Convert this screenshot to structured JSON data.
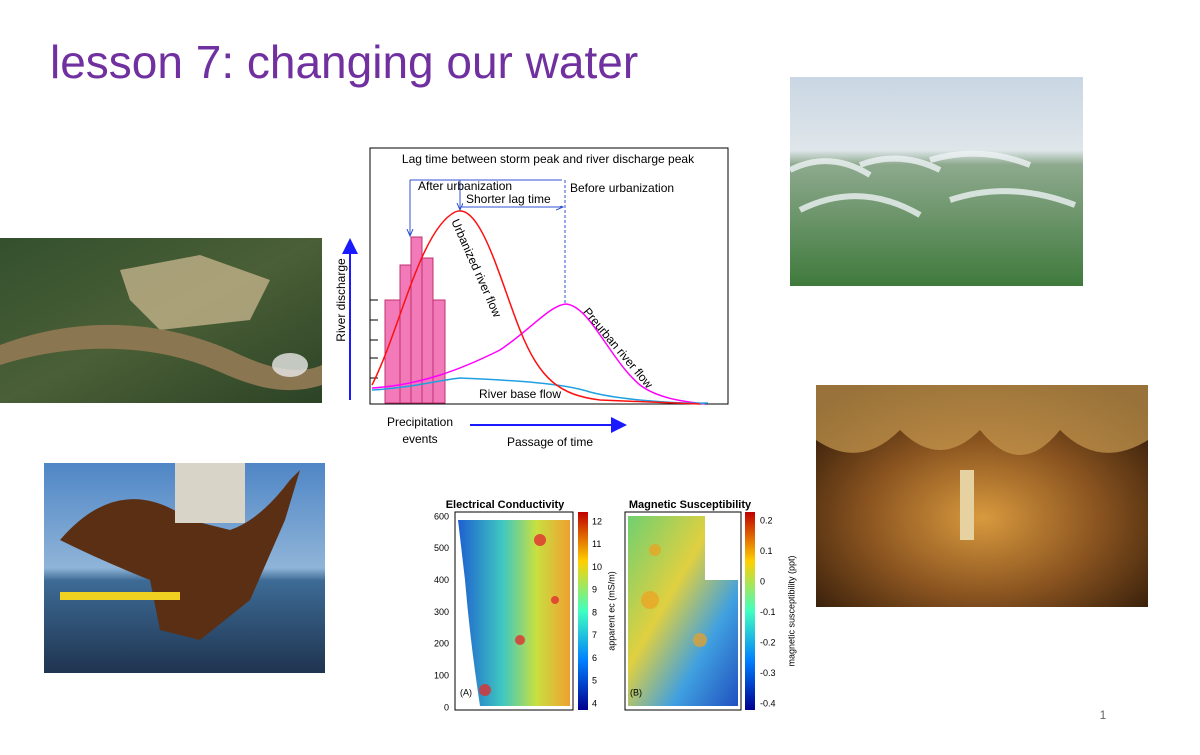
{
  "title": "lesson 7: changing our water",
  "page_number": "1",
  "hydrograph": {
    "title": "Lag time between storm peak and river discharge peak",
    "y_label": "River discharge",
    "x_label": "Passage of time",
    "after_urbanization": "After urbanization",
    "before_urbanization": "Before urbanization",
    "shorter_lag": "Shorter lag time",
    "urbanized_flow": "Urbanized river flow",
    "preurban_flow": "Preurban river flow",
    "base_flow": "River base flow",
    "precipitation": [
      "Precipitation",
      "events"
    ]
  },
  "conductivity_map": {
    "title": "Electrical Conductivity",
    "panel": "(A)",
    "yticks": [
      "600",
      "500",
      "400",
      "300",
      "200",
      "100",
      "0"
    ],
    "colorbar_ticks": [
      "12",
      "11",
      "10",
      "9",
      "8",
      "7",
      "6",
      "5",
      "4"
    ],
    "colorbar_label": "apparent ec (mS/m)"
  },
  "susceptibility_map": {
    "title": "Magnetic Susceptibility",
    "panel": "(B)",
    "colorbar_ticks": [
      "0.2",
      "0.1",
      "0",
      "-0.1",
      "-0.2",
      "-0.3",
      "-0.4"
    ],
    "colorbar_label": "magnetic susceptibility (ppt)"
  }
}
